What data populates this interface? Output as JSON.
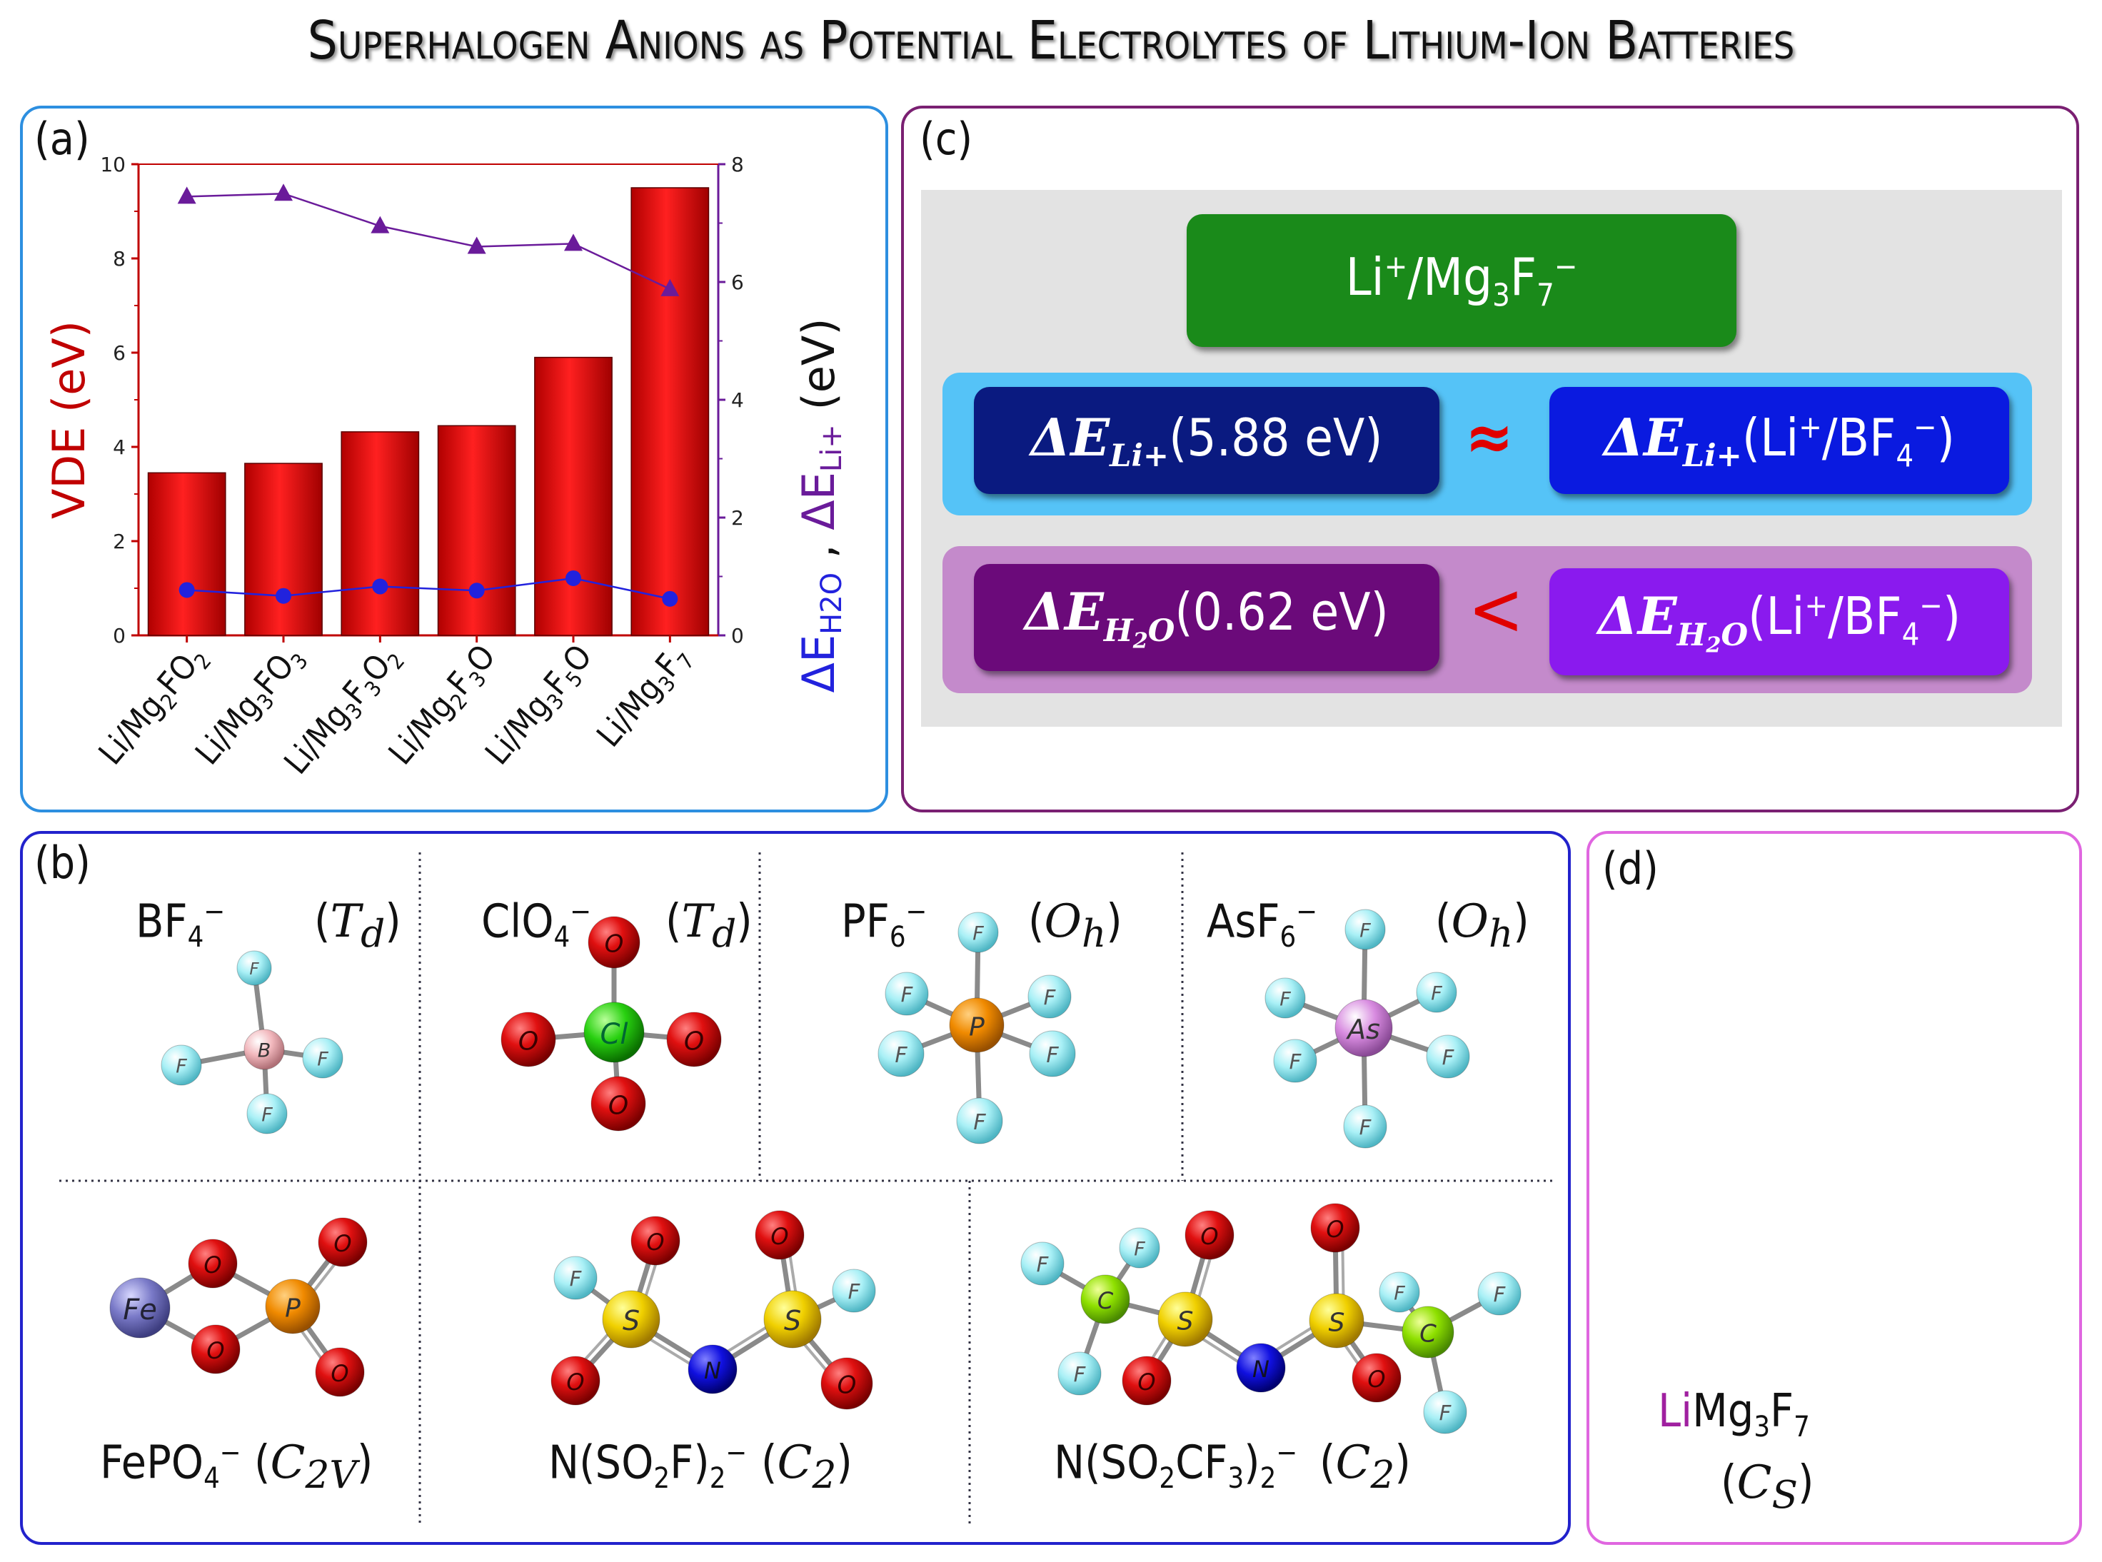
{
  "title": "Superhalogen Anions as Potential Electrolytes of Lithium-Ion Batteries",
  "panel_a": {
    "label": "(a)",
    "ylabel_left": "VDE  (eV)",
    "ylabel_right_parts": [
      "ΔE",
      "H2O",
      " , ",
      "ΔE",
      "Li+",
      " (eV)"
    ]
  },
  "chart_data": {
    "type": "bar",
    "categories": [
      "Li/Mg2FO2",
      "Li/Mg3FO3",
      "Li/Mg3F3O2",
      "Li/Mg2F3O",
      "Li/Mg3F5O",
      "Li/Mg3F7"
    ],
    "category_labels": [
      {
        "parts": [
          "Li/Mg",
          "2",
          "FO",
          "2"
        ]
      },
      {
        "parts": [
          "Li/Mg",
          "3",
          "FO",
          "3"
        ]
      },
      {
        "parts": [
          "Li/Mg",
          "3",
          "F",
          "3",
          "O",
          "2"
        ]
      },
      {
        "parts": [
          "Li/Mg",
          "2",
          "F",
          "3",
          "O"
        ]
      },
      {
        "parts": [
          "Li/Mg",
          "3",
          "F",
          "5",
          "O"
        ]
      },
      {
        "parts": [
          "Li/Mg",
          "3",
          "F",
          "7"
        ]
      }
    ],
    "series": [
      {
        "name": "VDE",
        "type": "bar",
        "axis": "left",
        "color": "#e00000",
        "values": [
          3.45,
          3.65,
          4.32,
          4.45,
          5.9,
          9.5
        ]
      },
      {
        "name": "ΔE Li+",
        "type": "line",
        "marker": "triangle",
        "axis": "right",
        "color": "#6a1b9a",
        "values": [
          7.45,
          7.5,
          6.95,
          6.6,
          6.65,
          5.88
        ]
      },
      {
        "name": "ΔE H2O",
        "type": "line",
        "marker": "circle",
        "axis": "right",
        "color": "#2222dd",
        "values": [
          0.77,
          0.67,
          0.83,
          0.76,
          0.97,
          0.62
        ]
      }
    ],
    "ylim_left": [
      0,
      10
    ],
    "yticks_left": [
      "0",
      "2",
      "4",
      "6",
      "8",
      "10"
    ],
    "ylim_right": [
      0,
      8
    ],
    "yticks_right": [
      "0",
      "2",
      "4",
      "6",
      "8"
    ]
  },
  "panel_b": {
    "label": "(b)",
    "molecules": [
      {
        "name": "BF4−",
        "parts": [
          "BF",
          "4",
          "−"
        ],
        "sym": "T",
        "symsub": "d"
      },
      {
        "name": "ClO4−",
        "parts": [
          "ClO",
          "4",
          "−"
        ],
        "sym": "T",
        "symsub": "d"
      },
      {
        "name": "PF6−",
        "parts": [
          "PF",
          "6",
          "−"
        ],
        "sym": "O",
        "symsub": "h"
      },
      {
        "name": "AsF6−",
        "parts": [
          "AsF",
          "6",
          "−"
        ],
        "sym": "O",
        "symsub": "h"
      },
      {
        "name": "FePO4−",
        "text": "FePO",
        "sub": "4",
        "sup": "−",
        "sym": "C",
        "symsub": "2V"
      },
      {
        "name": "N(SO2F)2−",
        "sym": "C",
        "symsub": "2"
      },
      {
        "name": "N(SO2CF3)2−",
        "sym": "C",
        "symsub": "2"
      }
    ],
    "atom_labels": {
      "F": "F",
      "B": "B",
      "O": "O",
      "Cl": "Cl",
      "P": "P",
      "As": "As",
      "Fe": "Fe",
      "S": "S",
      "N": "N",
      "C": "C"
    }
  },
  "panel_c": {
    "label": "(c)",
    "top_box": "Li+/Mg3F7−",
    "row1_left_value": "(5.88 eV)",
    "row1_op": "≈",
    "row1_right_ref": "(Li+/BF4−)",
    "row2_left_value": "(0.62 eV)",
    "row2_op": "<",
    "row2_right_ref": "(Li+/BF4−)",
    "symbol_delta_E": "ΔE",
    "sub_li": "Li+",
    "sub_h2o": "H2O",
    "colors": {
      "top": "#1a8a1a",
      "row1_band": "#55c3f7",
      "row1_left": "#0a1a80",
      "row1_right": "#0a1ae0",
      "row2_band": "#c48acb",
      "row2_left": "#6b0a7a",
      "row2_right": "#8a1aee",
      "approx": "#e00000",
      "less": "#e00000"
    }
  },
  "panel_d": {
    "label": "(d)",
    "formula_li": "Li",
    "formula_rest": "Mg3F7",
    "point_group": "C",
    "point_group_sub": "S"
  }
}
